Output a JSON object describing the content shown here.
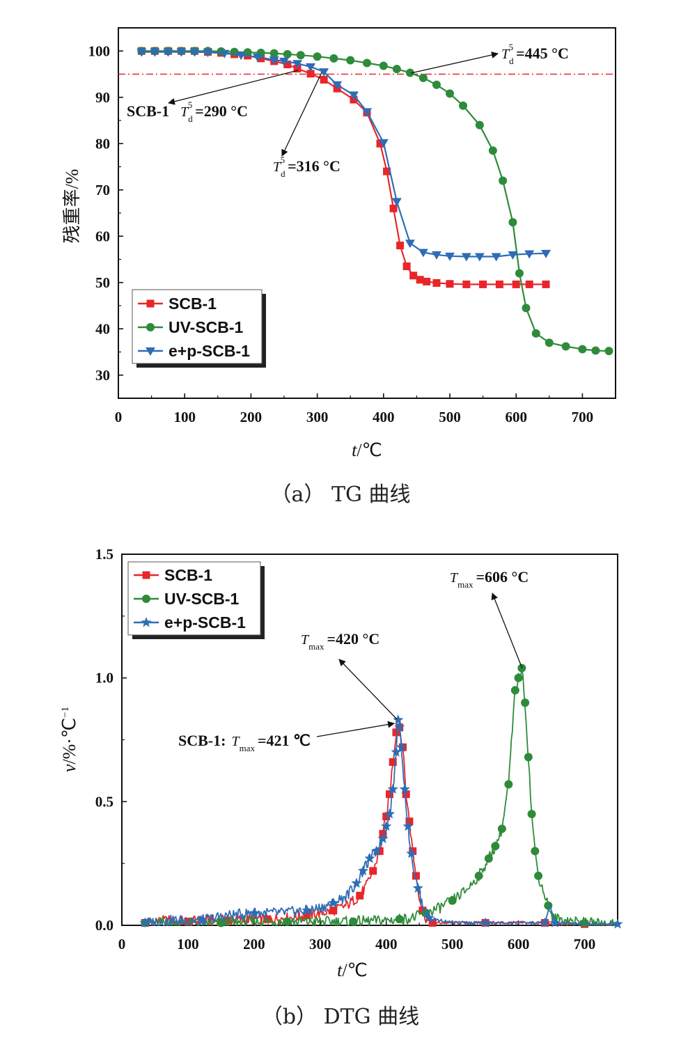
{
  "chart_data": [
    {
      "type": "line",
      "caption": "（a） TG 曲线",
      "xlabel_var": "t",
      "xlabel_unit": "/℃",
      "ylabel": "残重率/%",
      "xlim": [
        0,
        750
      ],
      "ylim": [
        25,
        105
      ],
      "xticks": [
        "0",
        "100",
        "200",
        "300",
        "400",
        "500",
        "600",
        "700"
      ],
      "yticks": [
        "30",
        "40",
        "50",
        "60",
        "70",
        "80",
        "90",
        "100"
      ],
      "reference_line": 95,
      "legend": {
        "placement": "bottom-left",
        "entries": [
          "SCB-1",
          "UV-SCB-1",
          "e+p-SCB-1"
        ]
      },
      "annotations": [
        {
          "prefix": "",
          "var": "T",
          "sub": "d",
          "sup": "5",
          "value": "=445 °C"
        },
        {
          "prefix": "SCB-1",
          "var": "T",
          "sub": "d",
          "sup": "5",
          "value": "=290 °C"
        },
        {
          "prefix": "",
          "var": "T",
          "sub": "d",
          "sup": "5",
          "value": "=316 °C"
        }
      ],
      "series": [
        {
          "name": "SCB-1",
          "color": "#e8262a",
          "marker": "square",
          "x": [
            35,
            55,
            75,
            95,
            115,
            135,
            155,
            175,
            195,
            215,
            235,
            255,
            270,
            290,
            310,
            330,
            355,
            375,
            395,
            405,
            415,
            425,
            435,
            445,
            455,
            465,
            480,
            500,
            525,
            550,
            575,
            600,
            620,
            645
          ],
          "y": [
            100,
            100,
            100,
            100,
            100,
            99.8,
            99.6,
            99.3,
            99,
            98.4,
            97.8,
            97.1,
            96.2,
            95.1,
            93.8,
            91.9,
            89.5,
            86.7,
            80,
            74,
            66,
            58,
            53.5,
            51.5,
            50.6,
            50.2,
            49.9,
            49.7,
            49.6,
            49.6,
            49.6,
            49.6,
            49.6,
            49.6
          ]
        },
        {
          "name": "UV-SCB-1",
          "color": "#2e8b3a",
          "marker": "circle",
          "x": [
            35,
            55,
            75,
            95,
            115,
            135,
            155,
            175,
            195,
            215,
            235,
            255,
            275,
            300,
            325,
            350,
            375,
            400,
            420,
            440,
            460,
            480,
            500,
            520,
            545,
            565,
            580,
            595,
            605,
            615,
            630,
            650,
            675,
            700,
            720,
            740
          ],
          "y": [
            100,
            100,
            100,
            100,
            100,
            100,
            99.9,
            99.8,
            99.7,
            99.6,
            99.5,
            99.3,
            99.1,
            98.8,
            98.4,
            98,
            97.4,
            96.8,
            96.1,
            95.3,
            94.2,
            92.7,
            90.8,
            88.2,
            84,
            78.5,
            72,
            63,
            52,
            44.5,
            39,
            37,
            36.2,
            35.6,
            35.3,
            35.2
          ]
        },
        {
          "name": "e+p-SCB-1",
          "color": "#2e6db5",
          "marker": "triangle-down",
          "x": [
            35,
            55,
            75,
            95,
            115,
            135,
            160,
            185,
            210,
            235,
            250,
            270,
            290,
            310,
            330,
            355,
            375,
            400,
            420,
            440,
            460,
            480,
            500,
            525,
            545,
            570,
            595,
            620,
            645
          ],
          "y": [
            99.8,
            99.8,
            99.8,
            99.8,
            99.8,
            99.7,
            99.5,
            99.1,
            98.7,
            98.1,
            97.8,
            97.3,
            96.6,
            95.5,
            92.7,
            90.5,
            86.9,
            80.2,
            67.5,
            58.5,
            56.5,
            56,
            55.7,
            55.6,
            55.6,
            55.6,
            56,
            56.2,
            56.3
          ]
        }
      ]
    },
    {
      "type": "line",
      "caption": "（b） DTG 曲线",
      "xlabel_var": "t",
      "xlabel_unit": "/℃",
      "ylabel_var": "v",
      "ylabel_unit": "/%·℃",
      "ylabel_exp": "−1",
      "xlim": [
        0,
        750
      ],
      "ylim": [
        0,
        1.5
      ],
      "xticks": [
        "0",
        "100",
        "200",
        "300",
        "400",
        "500",
        "600",
        "700"
      ],
      "yticks": [
        "0.0",
        "0.5",
        "1.0",
        "1.5"
      ],
      "legend": {
        "placement": "top-left",
        "entries": [
          "SCB-1",
          "UV-SCB-1",
          "e+p-SCB-1"
        ]
      },
      "annotations": [
        {
          "prefix": "",
          "var": "T",
          "sub": "max",
          "value": "=606 °C"
        },
        {
          "prefix": "",
          "var": "T",
          "sub": "max",
          "value": "=420 °C"
        },
        {
          "prefix": "SCB-1:",
          "var": "T",
          "sub": "max",
          "value": "=421 ℃"
        }
      ],
      "series": [
        {
          "name": "SCB-1",
          "color": "#e8262a",
          "marker": "square",
          "x": [
            35,
            70,
            100,
            130,
            160,
            190,
            220,
            250,
            280,
            300,
            320,
            340,
            360,
            370,
            380,
            390,
            395,
            400,
            405,
            410,
            415,
            420,
            425,
            430,
            435,
            440,
            445,
            450,
            455,
            460,
            470,
            500,
            550,
            600,
            640,
            660,
            700,
            750
          ],
          "y": [
            0.01,
            0.02,
            0.015,
            0.02,
            0.02,
            0.025,
            0.025,
            0.03,
            0.04,
            0.05,
            0.06,
            0.08,
            0.12,
            0.16,
            0.22,
            0.3,
            0.37,
            0.44,
            0.53,
            0.66,
            0.78,
            0.8,
            0.72,
            0.53,
            0.42,
            0.3,
            0.2,
            0.12,
            0.06,
            0.03,
            0.01,
            0.01,
            0.01,
            0.01,
            0.01,
            0.005,
            0.005,
            0.005
          ]
        },
        {
          "name": "UV-SCB-1",
          "color": "#2e8b3a",
          "marker": "circle",
          "x": [
            35,
            100,
            150,
            200,
            250,
            300,
            350,
            400,
            420,
            440,
            460,
            480,
            500,
            520,
            540,
            555,
            565,
            575,
            585,
            595,
            600,
            605,
            610,
            615,
            620,
            625,
            630,
            640,
            645,
            650,
            700,
            750
          ],
          "y": [
            0.01,
            0.01,
            0.01,
            0.015,
            0.015,
            0.015,
            0.015,
            0.02,
            0.025,
            0.03,
            0.05,
            0.07,
            0.1,
            0.14,
            0.2,
            0.27,
            0.32,
            0.39,
            0.57,
            0.95,
            1.0,
            1.04,
            0.9,
            0.68,
            0.45,
            0.3,
            0.2,
            0.12,
            0.08,
            0.03,
            0.01,
            0.005
          ]
        },
        {
          "name": "e+p-SCB-1",
          "color": "#2e6db5",
          "marker": "star",
          "x": [
            35,
            80,
            120,
            160,
            200,
            240,
            280,
            300,
            320,
            340,
            355,
            365,
            375,
            385,
            395,
            400,
            405,
            410,
            415,
            418,
            420,
            423,
            428,
            433,
            438,
            443,
            448,
            455,
            465,
            500,
            550,
            600,
            640,
            648,
            655,
            700,
            750
          ],
          "y": [
            0.01,
            0.02,
            0.02,
            0.04,
            0.05,
            0.05,
            0.06,
            0.07,
            0.09,
            0.12,
            0.17,
            0.22,
            0.27,
            0.3,
            0.35,
            0.4,
            0.45,
            0.55,
            0.7,
            0.83,
            0.8,
            0.72,
            0.55,
            0.4,
            0.29,
            0.2,
            0.15,
            0.08,
            0.03,
            0.01,
            0.01,
            0.01,
            0.01,
            0.08,
            0.01,
            0.005,
            0.005
          ]
        }
      ]
    }
  ]
}
